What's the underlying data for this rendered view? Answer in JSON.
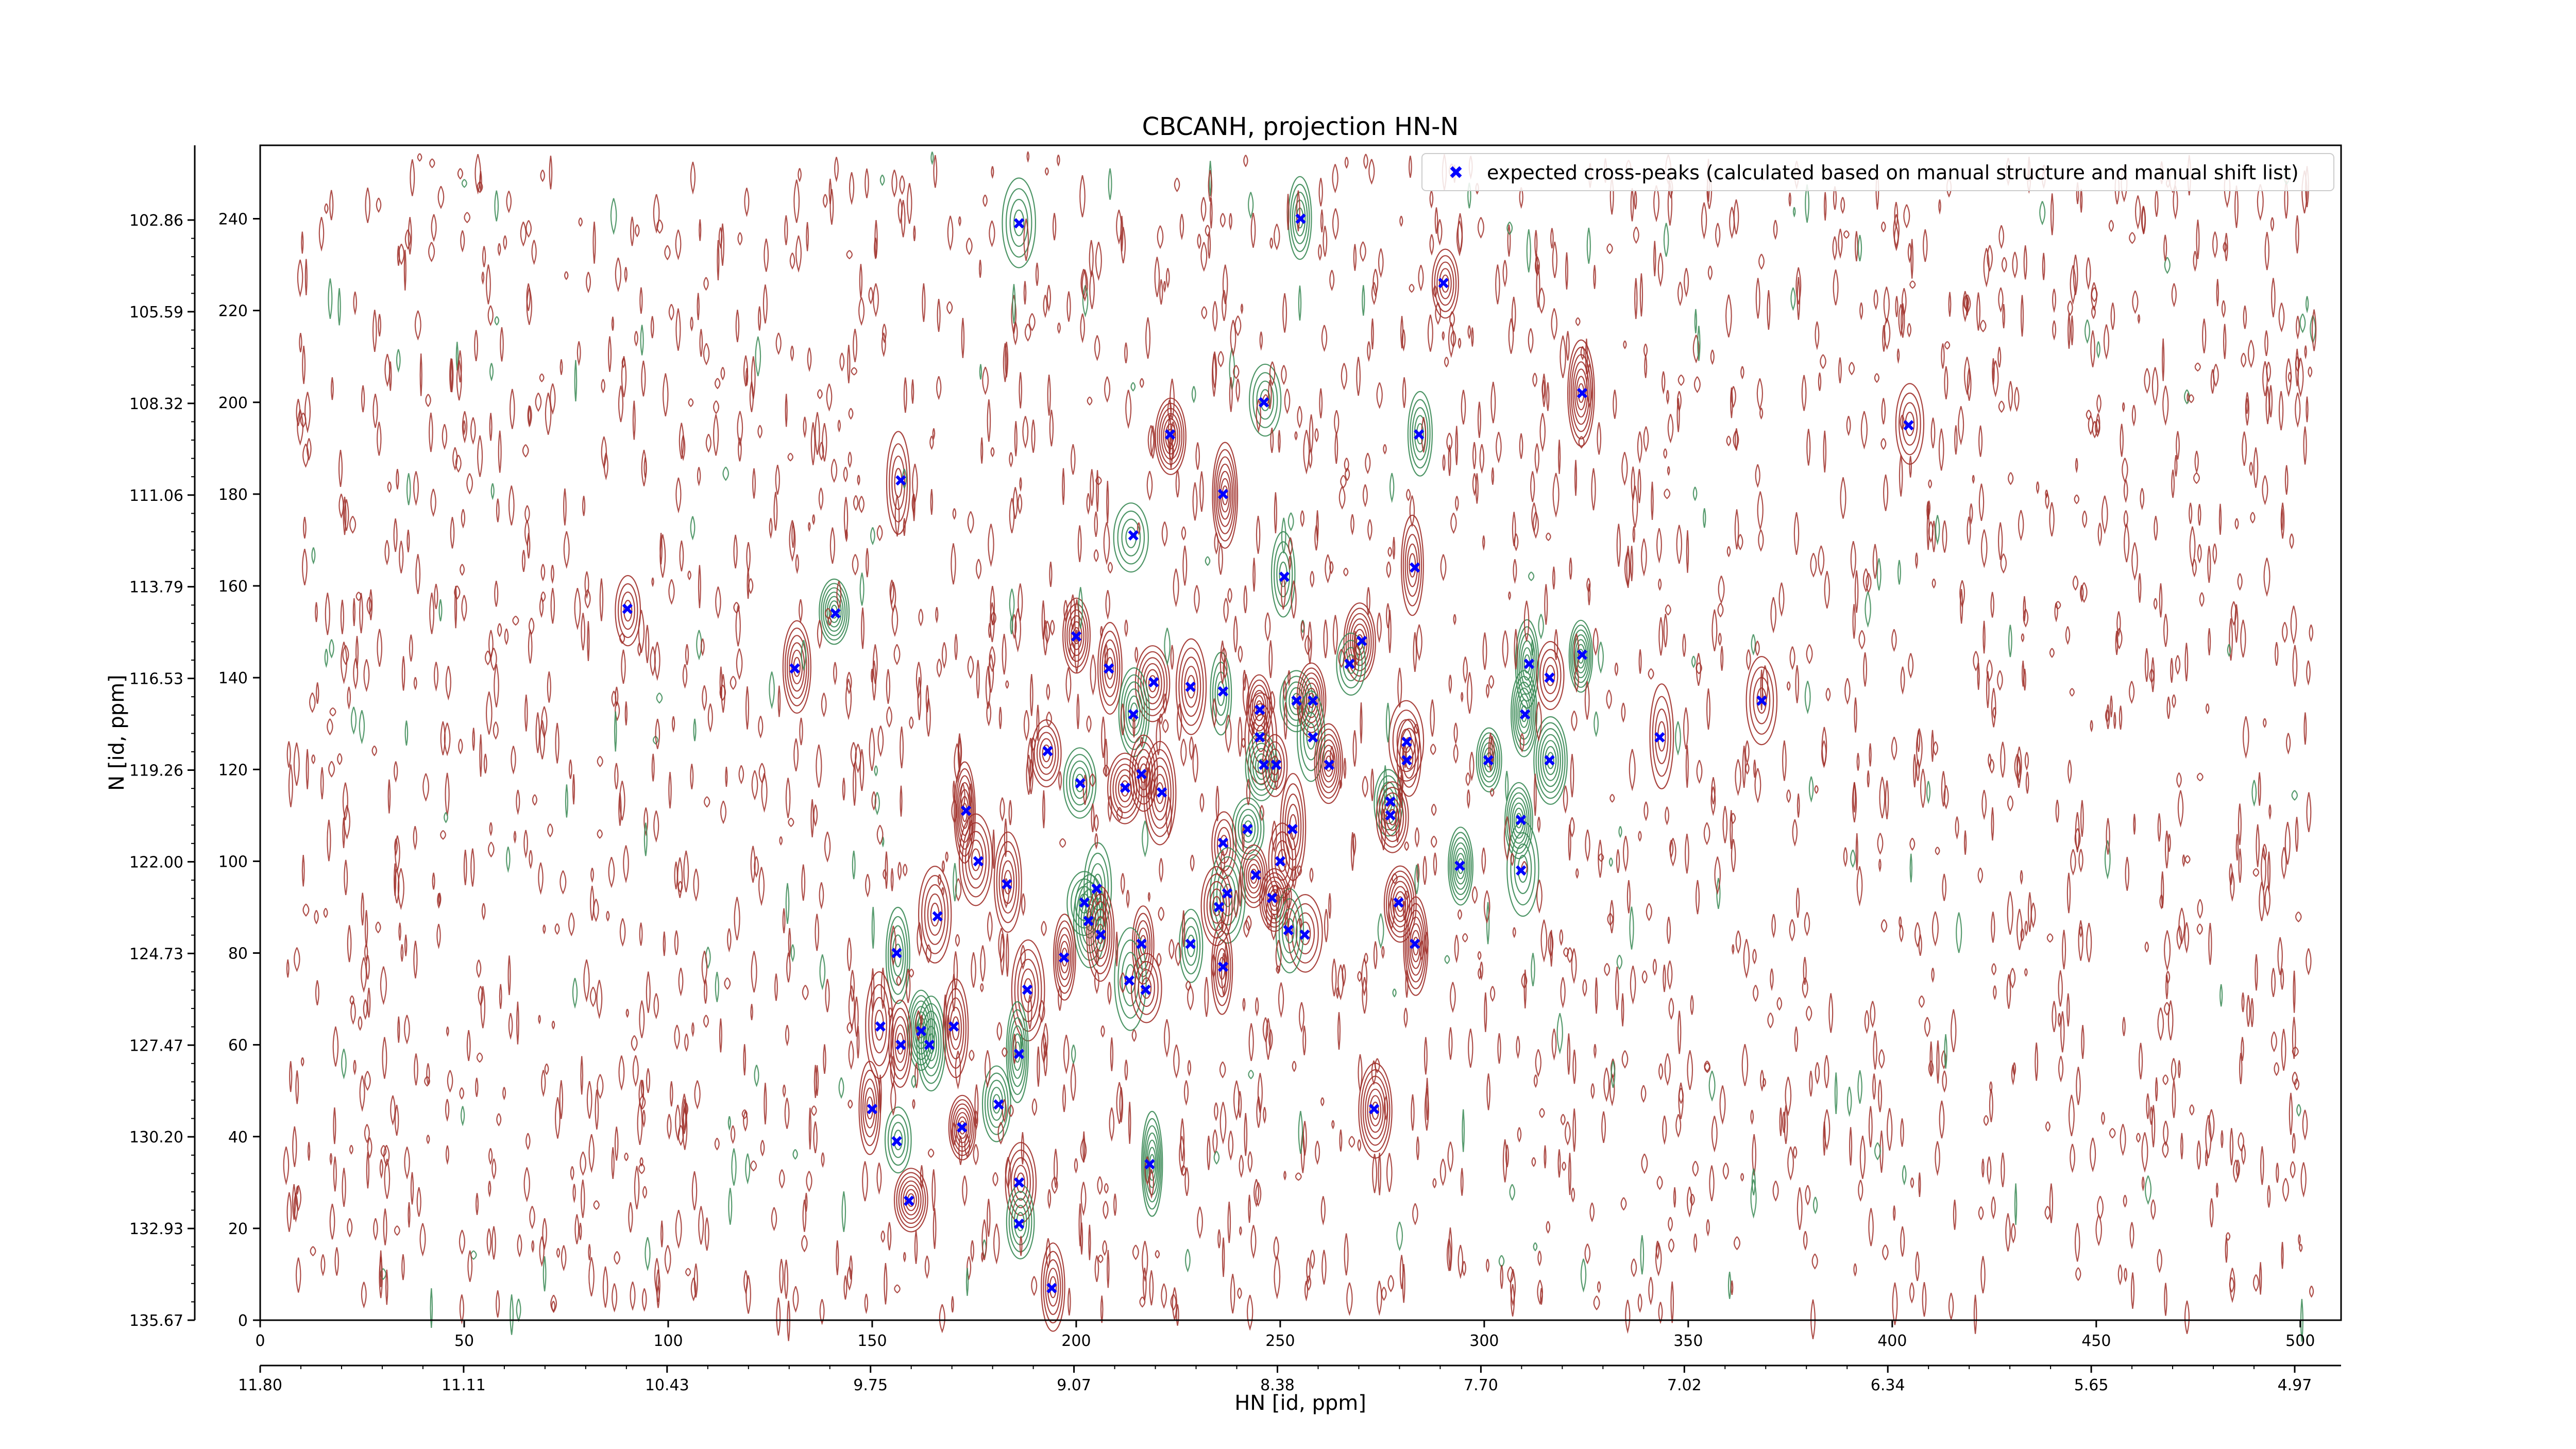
{
  "chart_data": {
    "type": "scatter",
    "title": "CBCANH, projection HN-N",
    "xlabel": "HN [id, ppm]",
    "ylabel": "N [id, ppm]",
    "xlim": [
      0,
      510
    ],
    "ylim": [
      0,
      256
    ],
    "x_ticks": [
      0,
      50,
      100,
      150,
      200,
      250,
      300,
      350,
      400,
      450,
      500
    ],
    "y_ticks": [
      0,
      20,
      40,
      60,
      80,
      100,
      120,
      140,
      160,
      180,
      200,
      220,
      240
    ],
    "x_ppm_ticks": [
      "11.80",
      "11.11",
      "10.43",
      "9.75",
      "9.07",
      "8.38",
      "7.70",
      "7.02",
      "6.34",
      "5.65",
      "4.97"
    ],
    "y_ppm_ticks": [
      "135.67",
      "132.93",
      "130.20",
      "127.47",
      "124.73",
      "122.00",
      "119.26",
      "116.53",
      "113.79",
      "111.06",
      "108.32",
      "105.59",
      "102.86"
    ],
    "legend": {
      "placement": "top-right",
      "label": "expected cross-peaks (calculated based on manual structure and manual shift list)"
    },
    "colors": {
      "marker": "#0000ff",
      "contour_positive": "#a0302a",
      "contour_negative": "#3a8a55"
    },
    "series": [
      {
        "name": "expected cross-peaks (calculated based on manual structure and manual shift list)",
        "points": [
          [
            186,
            239
          ],
          [
            255,
            240
          ],
          [
            290,
            226
          ],
          [
            324,
            202
          ],
          [
            246,
            200
          ],
          [
            404,
            195
          ],
          [
            223,
            193
          ],
          [
            284,
            193
          ],
          [
            236,
            180
          ],
          [
            157,
            183
          ],
          [
            214,
            171
          ],
          [
            251,
            162
          ],
          [
            283,
            164
          ],
          [
            90,
            155
          ],
          [
            141,
            154
          ],
          [
            200,
            149
          ],
          [
            270,
            148
          ],
          [
            267,
            143
          ],
          [
            131,
            142
          ],
          [
            208,
            142
          ],
          [
            311,
            143
          ],
          [
            324,
            145
          ],
          [
            316,
            140
          ],
          [
            228,
            138
          ],
          [
            236,
            137
          ],
          [
            219,
            139
          ],
          [
            368,
            135
          ],
          [
            254,
            135
          ],
          [
            258,
            135
          ],
          [
            245,
            133
          ],
          [
            214,
            132
          ],
          [
            310,
            132
          ],
          [
            343,
            127
          ],
          [
            245,
            127
          ],
          [
            258,
            127
          ],
          [
            281,
            126
          ],
          [
            193,
            124
          ],
          [
            246,
            121
          ],
          [
            249,
            121
          ],
          [
            262,
            121
          ],
          [
            301,
            122
          ],
          [
            316,
            122
          ],
          [
            281,
            122
          ],
          [
            216,
            119
          ],
          [
            201,
            117
          ],
          [
            212,
            116
          ],
          [
            221,
            115
          ],
          [
            277,
            113
          ],
          [
            173,
            111
          ],
          [
            277,
            110
          ],
          [
            309,
            109
          ],
          [
            242,
            107
          ],
          [
            253,
            107
          ],
          [
            236,
            104
          ],
          [
            294,
            99
          ],
          [
            176,
            100
          ],
          [
            250,
            100
          ],
          [
            309,
            98
          ],
          [
            183,
            95
          ],
          [
            244,
            97
          ],
          [
            205,
            94
          ],
          [
            237,
            93
          ],
          [
            248,
            92
          ],
          [
            235,
            90
          ],
          [
            202,
            91
          ],
          [
            279,
            91
          ],
          [
            166,
            88
          ],
          [
            203,
            87
          ],
          [
            206,
            84
          ],
          [
            256,
            84
          ],
          [
            252,
            85
          ],
          [
            228,
            82
          ],
          [
            216,
            82
          ],
          [
            283,
            82
          ],
          [
            156,
            80
          ],
          [
            197,
            79
          ],
          [
            236,
            77
          ],
          [
            213,
            74
          ],
          [
            188,
            72
          ],
          [
            217,
            72
          ],
          [
            162,
            63
          ],
          [
            164,
            60
          ],
          [
            170,
            64
          ],
          [
            152,
            64
          ],
          [
            186,
            58
          ],
          [
            157,
            60
          ],
          [
            150,
            46
          ],
          [
            181,
            47
          ],
          [
            273,
            46
          ],
          [
            172,
            42
          ],
          [
            156,
            39
          ],
          [
            218,
            34
          ],
          [
            186,
            30
          ],
          [
            159,
            26
          ],
          [
            186,
            21
          ],
          [
            194,
            7
          ]
        ]
      }
    ]
  }
}
